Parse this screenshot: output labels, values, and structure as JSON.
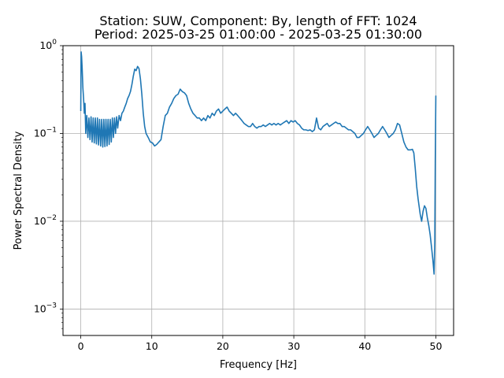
{
  "chart_data": {
    "type": "line",
    "title_line1": "Station: SUW, Component: By, length of FFT: 1024",
    "title_line2": "Period: 2025-03-25 01:00:00 - 2025-03-25 01:30:00",
    "xlabel": "Frequency [Hz]",
    "ylabel": "Power Spectral Density",
    "xlim": [
      -2.5,
      52.5
    ],
    "ylim": [
      0.0005,
      1.0
    ],
    "yscale": "log",
    "grid": true,
    "xticks": [
      0,
      10,
      20,
      30,
      40,
      50
    ],
    "xtick_labels": [
      "0",
      "10",
      "20",
      "30",
      "40",
      "50"
    ],
    "yticks": [
      0.001,
      0.01,
      0.1,
      1
    ],
    "ytick_labels": [
      {
        "base": "10",
        "exp": "−3"
      },
      {
        "base": "10",
        "exp": "−2"
      },
      {
        "base": "10",
        "exp": "−1"
      },
      {
        "base": "10",
        "exp": "0"
      }
    ],
    "series": [
      {
        "color": "#1f77b4",
        "points": [
          [
            0.0,
            0.18
          ],
          [
            0.05,
            0.85
          ],
          [
            0.12,
            0.75
          ],
          [
            0.2,
            0.55
          ],
          [
            0.3,
            0.33
          ],
          [
            0.4,
            0.25
          ],
          [
            0.5,
            0.17
          ],
          [
            0.6,
            0.22
          ],
          [
            0.7,
            0.1
          ],
          [
            0.85,
            0.16
          ],
          [
            1.0,
            0.09
          ],
          [
            1.15,
            0.15
          ],
          [
            1.3,
            0.085
          ],
          [
            1.45,
            0.155
          ],
          [
            1.6,
            0.08
          ],
          [
            1.75,
            0.15
          ],
          [
            1.9,
            0.078
          ],
          [
            2.05,
            0.15
          ],
          [
            2.2,
            0.076
          ],
          [
            2.35,
            0.15
          ],
          [
            2.5,
            0.074
          ],
          [
            2.65,
            0.145
          ],
          [
            2.8,
            0.072
          ],
          [
            2.95,
            0.145
          ],
          [
            3.1,
            0.07
          ],
          [
            3.25,
            0.145
          ],
          [
            3.4,
            0.071
          ],
          [
            3.55,
            0.145
          ],
          [
            3.7,
            0.072
          ],
          [
            3.85,
            0.145
          ],
          [
            4.0,
            0.075
          ],
          [
            4.15,
            0.145
          ],
          [
            4.3,
            0.08
          ],
          [
            4.45,
            0.15
          ],
          [
            4.6,
            0.09
          ],
          [
            4.75,
            0.15
          ],
          [
            4.9,
            0.1
          ],
          [
            5.05,
            0.155
          ],
          [
            5.2,
            0.115
          ],
          [
            5.4,
            0.16
          ],
          [
            5.6,
            0.14
          ],
          [
            5.8,
            0.17
          ],
          [
            6.0,
            0.18
          ],
          [
            6.2,
            0.2
          ],
          [
            6.4,
            0.22
          ],
          [
            6.6,
            0.25
          ],
          [
            6.8,
            0.27
          ],
          [
            7.0,
            0.3
          ],
          [
            7.2,
            0.36
          ],
          [
            7.4,
            0.45
          ],
          [
            7.6,
            0.54
          ],
          [
            7.8,
            0.52
          ],
          [
            8.0,
            0.58
          ],
          [
            8.2,
            0.55
          ],
          [
            8.4,
            0.42
          ],
          [
            8.6,
            0.28
          ],
          [
            8.8,
            0.17
          ],
          [
            9.0,
            0.12
          ],
          [
            9.2,
            0.1
          ],
          [
            9.5,
            0.09
          ],
          [
            9.8,
            0.08
          ],
          [
            10.1,
            0.078
          ],
          [
            10.4,
            0.072
          ],
          [
            10.7,
            0.075
          ],
          [
            11.0,
            0.08
          ],
          [
            11.3,
            0.085
          ],
          [
            11.6,
            0.12
          ],
          [
            11.9,
            0.16
          ],
          [
            12.2,
            0.17
          ],
          [
            12.5,
            0.2
          ],
          [
            12.8,
            0.22
          ],
          [
            13.1,
            0.25
          ],
          [
            13.4,
            0.27
          ],
          [
            13.7,
            0.28
          ],
          [
            14.0,
            0.32
          ],
          [
            14.3,
            0.3
          ],
          [
            14.6,
            0.29
          ],
          [
            14.9,
            0.27
          ],
          [
            15.2,
            0.22
          ],
          [
            15.5,
            0.19
          ],
          [
            15.8,
            0.17
          ],
          [
            16.1,
            0.16
          ],
          [
            16.4,
            0.15
          ],
          [
            16.7,
            0.15
          ],
          [
            17.0,
            0.14
          ],
          [
            17.3,
            0.15
          ],
          [
            17.6,
            0.14
          ],
          [
            17.9,
            0.16
          ],
          [
            18.2,
            0.15
          ],
          [
            18.5,
            0.17
          ],
          [
            18.8,
            0.16
          ],
          [
            19.1,
            0.18
          ],
          [
            19.4,
            0.19
          ],
          [
            19.7,
            0.17
          ],
          [
            20.0,
            0.18
          ],
          [
            20.3,
            0.19
          ],
          [
            20.6,
            0.2
          ],
          [
            20.9,
            0.18
          ],
          [
            21.2,
            0.17
          ],
          [
            21.5,
            0.16
          ],
          [
            21.8,
            0.17
          ],
          [
            22.1,
            0.16
          ],
          [
            22.4,
            0.15
          ],
          [
            22.7,
            0.14
          ],
          [
            23.0,
            0.13
          ],
          [
            23.3,
            0.125
          ],
          [
            23.6,
            0.12
          ],
          [
            23.9,
            0.12
          ],
          [
            24.2,
            0.13
          ],
          [
            24.5,
            0.12
          ],
          [
            24.8,
            0.115
          ],
          [
            25.1,
            0.12
          ],
          [
            25.4,
            0.12
          ],
          [
            25.7,
            0.125
          ],
          [
            26.0,
            0.12
          ],
          [
            26.3,
            0.125
          ],
          [
            26.6,
            0.13
          ],
          [
            26.9,
            0.125
          ],
          [
            27.2,
            0.13
          ],
          [
            27.5,
            0.125
          ],
          [
            27.8,
            0.13
          ],
          [
            28.1,
            0.125
          ],
          [
            28.4,
            0.13
          ],
          [
            28.7,
            0.135
          ],
          [
            29.0,
            0.14
          ],
          [
            29.3,
            0.13
          ],
          [
            29.6,
            0.14
          ],
          [
            29.9,
            0.135
          ],
          [
            30.2,
            0.14
          ],
          [
            30.5,
            0.13
          ],
          [
            30.8,
            0.125
          ],
          [
            31.1,
            0.115
          ],
          [
            31.4,
            0.11
          ],
          [
            31.7,
            0.11
          ],
          [
            32.0,
            0.108
          ],
          [
            32.3,
            0.11
          ],
          [
            32.6,
            0.105
          ],
          [
            32.9,
            0.11
          ],
          [
            33.2,
            0.15
          ],
          [
            33.5,
            0.115
          ],
          [
            33.8,
            0.11
          ],
          [
            34.1,
            0.12
          ],
          [
            34.4,
            0.125
          ],
          [
            34.7,
            0.13
          ],
          [
            35.0,
            0.12
          ],
          [
            35.3,
            0.125
          ],
          [
            35.6,
            0.13
          ],
          [
            35.9,
            0.135
          ],
          [
            36.2,
            0.13
          ],
          [
            36.5,
            0.13
          ],
          [
            36.8,
            0.12
          ],
          [
            37.1,
            0.12
          ],
          [
            37.4,
            0.115
          ],
          [
            37.7,
            0.11
          ],
          [
            38.0,
            0.11
          ],
          [
            38.3,
            0.105
          ],
          [
            38.6,
            0.1
          ],
          [
            38.9,
            0.09
          ],
          [
            39.2,
            0.09
          ],
          [
            39.5,
            0.095
          ],
          [
            39.8,
            0.1
          ],
          [
            40.1,
            0.11
          ],
          [
            40.4,
            0.12
          ],
          [
            40.7,
            0.11
          ],
          [
            41.0,
            0.1
          ],
          [
            41.3,
            0.09
          ],
          [
            41.6,
            0.095
          ],
          [
            41.9,
            0.1
          ],
          [
            42.2,
            0.11
          ],
          [
            42.5,
            0.12
          ],
          [
            42.8,
            0.11
          ],
          [
            43.1,
            0.1
          ],
          [
            43.4,
            0.09
          ],
          [
            43.7,
            0.095
          ],
          [
            44.0,
            0.1
          ],
          [
            44.3,
            0.11
          ],
          [
            44.6,
            0.13
          ],
          [
            44.9,
            0.125
          ],
          [
            45.2,
            0.1
          ],
          [
            45.5,
            0.08
          ],
          [
            45.8,
            0.07
          ],
          [
            46.1,
            0.065
          ],
          [
            46.4,
            0.065
          ],
          [
            46.7,
            0.066
          ],
          [
            46.9,
            0.06
          ],
          [
            47.1,
            0.04
          ],
          [
            47.3,
            0.025
          ],
          [
            47.5,
            0.018
          ],
          [
            47.8,
            0.012
          ],
          [
            48.0,
            0.01
          ],
          [
            48.2,
            0.013
          ],
          [
            48.4,
            0.015
          ],
          [
            48.6,
            0.014
          ],
          [
            48.8,
            0.011
          ],
          [
            49.0,
            0.009
          ],
          [
            49.2,
            0.007
          ],
          [
            49.4,
            0.005
          ],
          [
            49.6,
            0.0035
          ],
          [
            49.75,
            0.0025
          ],
          [
            49.85,
            0.006
          ],
          [
            49.92,
            0.05
          ],
          [
            50.0,
            0.27
          ]
        ]
      }
    ]
  }
}
